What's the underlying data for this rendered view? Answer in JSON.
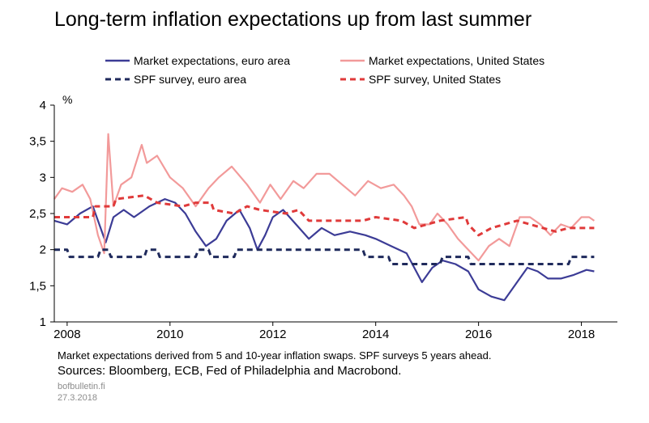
{
  "title": "Long-term inflation expectations up from last summer",
  "note": "Market expectations derived from 5 and 10-year inflation swaps. SPF surveys 5 years ahead.",
  "sources": "Sources: Bloomberg, ECB, Fed of Philadelphia and Macrobond.",
  "brand": "bofbulletin.fi",
  "date": "27.3.2018",
  "chart_data": {
    "type": "line",
    "ylabel": "%",
    "xlabel": "",
    "ylim": [
      1,
      4
    ],
    "xlim": [
      2007.75,
      2018.7
    ],
    "yticks": [
      "1",
      "1,5",
      "2",
      "2,5",
      "3",
      "3,5",
      "4"
    ],
    "xticks": [
      "2008",
      "2010",
      "2012",
      "2014",
      "2016",
      "2018"
    ],
    "legend_position": "top",
    "grid": false,
    "series": [
      {
        "name": "Market expectations, euro area",
        "color": "#3c3c96",
        "style": "solid",
        "points": [
          [
            2007.75,
            2.4
          ],
          [
            2008.0,
            2.35
          ],
          [
            2008.25,
            2.5
          ],
          [
            2008.5,
            2.6
          ],
          [
            2008.75,
            2.1
          ],
          [
            2008.9,
            2.45
          ],
          [
            2009.1,
            2.55
          ],
          [
            2009.3,
            2.45
          ],
          [
            2009.6,
            2.6
          ],
          [
            2009.9,
            2.7
          ],
          [
            2010.1,
            2.65
          ],
          [
            2010.3,
            2.5
          ],
          [
            2010.5,
            2.25
          ],
          [
            2010.7,
            2.05
          ],
          [
            2010.9,
            2.15
          ],
          [
            2011.1,
            2.4
          ],
          [
            2011.35,
            2.55
          ],
          [
            2011.55,
            2.3
          ],
          [
            2011.7,
            2.0
          ],
          [
            2011.85,
            2.2
          ],
          [
            2012.0,
            2.45
          ],
          [
            2012.2,
            2.55
          ],
          [
            2012.45,
            2.35
          ],
          [
            2012.7,
            2.15
          ],
          [
            2012.95,
            2.3
          ],
          [
            2013.2,
            2.2
          ],
          [
            2013.5,
            2.25
          ],
          [
            2013.8,
            2.2
          ],
          [
            2014.0,
            2.15
          ],
          [
            2014.3,
            2.05
          ],
          [
            2014.6,
            1.95
          ],
          [
            2014.75,
            1.75
          ],
          [
            2014.9,
            1.55
          ],
          [
            2015.1,
            1.75
          ],
          [
            2015.3,
            1.85
          ],
          [
            2015.55,
            1.8
          ],
          [
            2015.8,
            1.7
          ],
          [
            2016.0,
            1.45
          ],
          [
            2016.25,
            1.35
          ],
          [
            2016.5,
            1.3
          ],
          [
            2016.75,
            1.55
          ],
          [
            2016.95,
            1.75
          ],
          [
            2017.15,
            1.7
          ],
          [
            2017.35,
            1.6
          ],
          [
            2017.6,
            1.6
          ],
          [
            2017.85,
            1.65
          ],
          [
            2018.1,
            1.72
          ],
          [
            2018.25,
            1.7
          ]
        ]
      },
      {
        "name": "Market expectations, United States",
        "color": "#f29a9a",
        "style": "solid",
        "points": [
          [
            2007.75,
            2.7
          ],
          [
            2007.9,
            2.85
          ],
          [
            2008.1,
            2.8
          ],
          [
            2008.3,
            2.9
          ],
          [
            2008.45,
            2.7
          ],
          [
            2008.6,
            2.2
          ],
          [
            2008.72,
            1.95
          ],
          [
            2008.8,
            3.6
          ],
          [
            2008.9,
            2.6
          ],
          [
            2009.05,
            2.9
          ],
          [
            2009.25,
            3.0
          ],
          [
            2009.45,
            3.45
          ],
          [
            2009.55,
            3.2
          ],
          [
            2009.75,
            3.3
          ],
          [
            2010.0,
            3.0
          ],
          [
            2010.25,
            2.85
          ],
          [
            2010.5,
            2.6
          ],
          [
            2010.75,
            2.85
          ],
          [
            2010.95,
            3.0
          ],
          [
            2011.2,
            3.15
          ],
          [
            2011.5,
            2.9
          ],
          [
            2011.75,
            2.65
          ],
          [
            2011.95,
            2.9
          ],
          [
            2012.15,
            2.7
          ],
          [
            2012.4,
            2.95
          ],
          [
            2012.6,
            2.85
          ],
          [
            2012.85,
            3.05
          ],
          [
            2013.1,
            3.05
          ],
          [
            2013.35,
            2.9
          ],
          [
            2013.6,
            2.75
          ],
          [
            2013.85,
            2.95
          ],
          [
            2014.1,
            2.85
          ],
          [
            2014.35,
            2.9
          ],
          [
            2014.55,
            2.75
          ],
          [
            2014.7,
            2.6
          ],
          [
            2014.85,
            2.35
          ],
          [
            2015.05,
            2.35
          ],
          [
            2015.2,
            2.5
          ],
          [
            2015.4,
            2.35
          ],
          [
            2015.6,
            2.15
          ],
          [
            2015.8,
            2.0
          ],
          [
            2016.0,
            1.85
          ],
          [
            2016.2,
            2.05
          ],
          [
            2016.4,
            2.15
          ],
          [
            2016.6,
            2.05
          ],
          [
            2016.8,
            2.45
          ],
          [
            2017.0,
            2.45
          ],
          [
            2017.2,
            2.35
          ],
          [
            2017.4,
            2.2
          ],
          [
            2017.6,
            2.35
          ],
          [
            2017.8,
            2.3
          ],
          [
            2018.0,
            2.45
          ],
          [
            2018.15,
            2.45
          ],
          [
            2018.25,
            2.4
          ]
        ]
      },
      {
        "name": "SPF survey, euro area",
        "color": "#1f2a5c",
        "style": "dashed",
        "points": [
          [
            2007.75,
            2.0
          ],
          [
            2008.0,
            2.0
          ],
          [
            2008.05,
            1.9
          ],
          [
            2008.6,
            1.9
          ],
          [
            2008.65,
            2.0
          ],
          [
            2008.8,
            2.0
          ],
          [
            2008.85,
            1.9
          ],
          [
            2009.5,
            1.9
          ],
          [
            2009.55,
            2.0
          ],
          [
            2009.75,
            2.0
          ],
          [
            2009.8,
            1.9
          ],
          [
            2010.5,
            1.9
          ],
          [
            2010.55,
            2.0
          ],
          [
            2010.75,
            2.0
          ],
          [
            2010.8,
            1.9
          ],
          [
            2011.25,
            1.9
          ],
          [
            2011.3,
            2.0
          ],
          [
            2013.75,
            2.0
          ],
          [
            2013.8,
            1.9
          ],
          [
            2014.25,
            1.9
          ],
          [
            2014.3,
            1.8
          ],
          [
            2015.25,
            1.8
          ],
          [
            2015.3,
            1.9
          ],
          [
            2015.8,
            1.9
          ],
          [
            2015.85,
            1.8
          ],
          [
            2017.75,
            1.8
          ],
          [
            2017.8,
            1.9
          ],
          [
            2018.25,
            1.9
          ]
        ]
      },
      {
        "name": "SPF survey, United States",
        "color": "#e03a3a",
        "style": "dashed",
        "points": [
          [
            2007.75,
            2.45
          ],
          [
            2008.5,
            2.45
          ],
          [
            2008.55,
            2.6
          ],
          [
            2008.9,
            2.6
          ],
          [
            2008.95,
            2.7
          ],
          [
            2009.5,
            2.75
          ],
          [
            2009.75,
            2.65
          ],
          [
            2010.25,
            2.6
          ],
          [
            2010.5,
            2.65
          ],
          [
            2010.8,
            2.65
          ],
          [
            2010.85,
            2.55
          ],
          [
            2011.25,
            2.5
          ],
          [
            2011.5,
            2.6
          ],
          [
            2011.75,
            2.55
          ],
          [
            2012.25,
            2.5
          ],
          [
            2012.5,
            2.55
          ],
          [
            2012.7,
            2.4
          ],
          [
            2013.5,
            2.4
          ],
          [
            2013.75,
            2.4
          ],
          [
            2014.0,
            2.45
          ],
          [
            2014.5,
            2.4
          ],
          [
            2014.75,
            2.3
          ],
          [
            2015.0,
            2.35
          ],
          [
            2015.25,
            2.4
          ],
          [
            2015.75,
            2.45
          ],
          [
            2015.8,
            2.35
          ],
          [
            2016.0,
            2.2
          ],
          [
            2016.25,
            2.3
          ],
          [
            2016.5,
            2.35
          ],
          [
            2016.75,
            2.4
          ],
          [
            2017.0,
            2.35
          ],
          [
            2017.25,
            2.3
          ],
          [
            2017.5,
            2.25
          ],
          [
            2017.75,
            2.3
          ],
          [
            2018.25,
            2.3
          ]
        ]
      }
    ]
  }
}
